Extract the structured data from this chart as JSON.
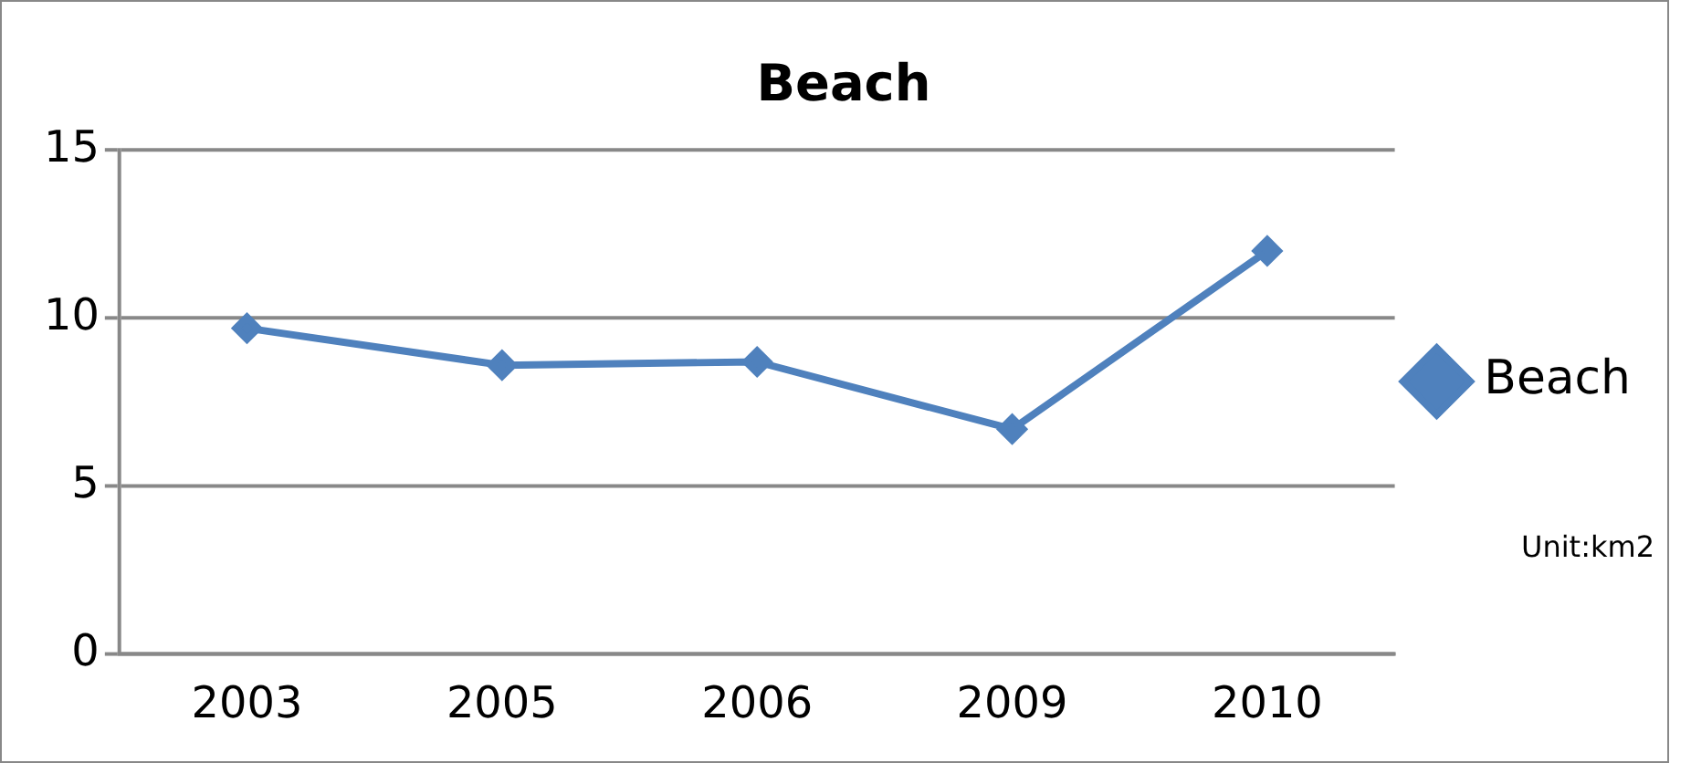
{
  "chart_data": {
    "type": "line",
    "title": "Beach",
    "categories": [
      "2003",
      "2005",
      "2006",
      "2009",
      "2010"
    ],
    "series": [
      {
        "name": "Beach",
        "color": "#4f81bd",
        "values": [
          9.7,
          8.6,
          8.7,
          6.7,
          12
        ]
      }
    ],
    "ylim": [
      0,
      15
    ],
    "yticks": [
      0,
      5,
      10,
      15
    ],
    "grid": "y",
    "legend": "right",
    "marker": "diamond",
    "line_style": "solid",
    "annotations": [
      "Unit:km2"
    ]
  }
}
